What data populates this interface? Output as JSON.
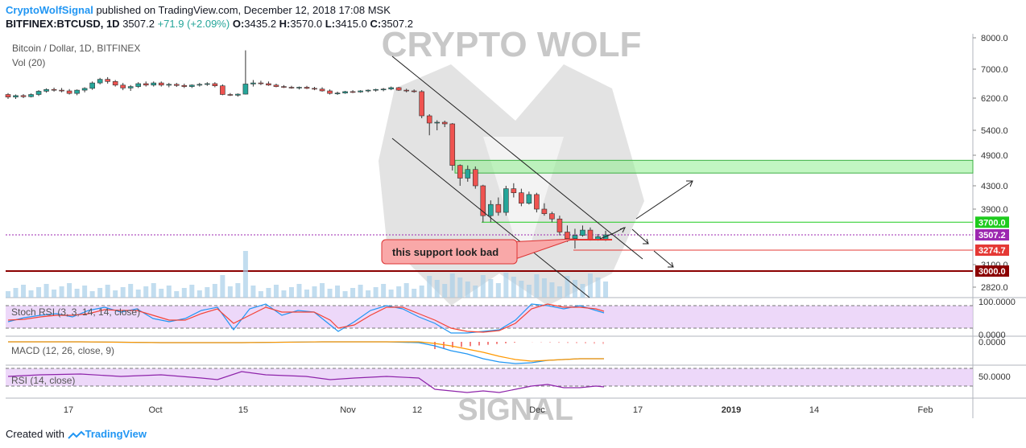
{
  "header": {
    "brand": "CryptoWolfSignal",
    "published": "published on TradingView.com, December 12, 2018 17:08 MSK",
    "symbol": "BITFINEX:BTCUSD, 1D",
    "last": "3507.2",
    "change": "+71.9 (+2.09%)",
    "o_label": "O:",
    "o_value": "3435.2",
    "h_label": "H:",
    "h_value": "3570.0",
    "l_label": "L:",
    "l_value": "3415.0",
    "c_label": "C:",
    "c_value": "3507.2"
  },
  "chart": {
    "pane_title": "Bitcoin / Dollar, 1D, BITFINEX",
    "vol_label": "Vol (20)",
    "watermark_top": "CRYPTO WOLF",
    "watermark_bottom": "SIGNAL",
    "annotation": "this support look bad",
    "stoch_label": "Stoch RSI (3, 3, 14, 14, close)",
    "macd_label": "MACD (12, 26, close, 9)",
    "rsi_label": "RSI (14, close)"
  },
  "chart_data": {
    "type": "candlestick",
    "x_ticks": [
      "17",
      "Oct",
      "15",
      "Nov",
      "12",
      "Dec",
      "17",
      "2019",
      "14",
      "Feb"
    ],
    "y_ticks": [
      "8000.0",
      "7000.0",
      "6200.0",
      "5400.0",
      "4900.0",
      "4300.0",
      "3900.0",
      "3100.0",
      "2820.0"
    ],
    "price_labels": [
      {
        "value": "3700.0",
        "color": "#1ecb1e"
      },
      {
        "value": "3507.2",
        "color": "#9c27b0"
      },
      {
        "value": "3274.7",
        "color": "#e53935"
      },
      {
        "value": "3000.0",
        "color": "#8b0000"
      }
    ],
    "stoch_ticks": [
      "100.0000",
      "0.0000"
    ],
    "macd_ticks": [
      "0.0000"
    ],
    "rsi_ticks": [
      "50.0000"
    ],
    "green_zone": [
      4550,
      4800
    ],
    "candles_ohlc": [
      [
        6300,
        6340,
        6180,
        6230
      ],
      [
        6230,
        6300,
        6180,
        6270
      ],
      [
        6270,
        6310,
        6200,
        6240
      ],
      [
        6240,
        6330,
        6220,
        6300
      ],
      [
        6300,
        6420,
        6260,
        6390
      ],
      [
        6390,
        6470,
        6350,
        6440
      ],
      [
        6440,
        6490,
        6380,
        6420
      ],
      [
        6420,
        6480,
        6360,
        6400
      ],
      [
        6400,
        6450,
        6300,
        6330
      ],
      [
        6330,
        6440,
        6280,
        6420
      ],
      [
        6420,
        6500,
        6360,
        6470
      ],
      [
        6470,
        6660,
        6430,
        6620
      ],
      [
        6620,
        6760,
        6580,
        6720
      ],
      [
        6720,
        6780,
        6600,
        6660
      ],
      [
        6660,
        6700,
        6520,
        6560
      ],
      [
        6560,
        6620,
        6420,
        6480
      ],
      [
        6480,
        6560,
        6400,
        6520
      ],
      [
        6520,
        6640,
        6480,
        6600
      ],
      [
        6600,
        6660,
        6520,
        6560
      ],
      [
        6560,
        6660,
        6520,
        6620
      ],
      [
        6620,
        6660,
        6520,
        6560
      ],
      [
        6560,
        6620,
        6500,
        6580
      ],
      [
        6580,
        6620,
        6510,
        6550
      ],
      [
        6550,
        6600,
        6480,
        6520
      ],
      [
        6520,
        6580,
        6480,
        6560
      ],
      [
        6560,
        6620,
        6520,
        6580
      ],
      [
        6580,
        6640,
        6540,
        6600
      ],
      [
        6600,
        6640,
        6500,
        6540
      ],
      [
        6540,
        6580,
        6280,
        6300
      ],
      [
        6300,
        6340,
        6260,
        6280
      ],
      [
        6280,
        6330,
        6240,
        6310
      ],
      [
        6310,
        7600,
        6300,
        6590
      ],
      [
        6590,
        6700,
        6520,
        6620
      ],
      [
        6620,
        6680,
        6560,
        6600
      ],
      [
        6600,
        6660,
        6540,
        6560
      ],
      [
        6560,
        6600,
        6500,
        6520
      ],
      [
        6520,
        6560,
        6480,
        6500
      ],
      [
        6500,
        6540,
        6460,
        6480
      ],
      [
        6480,
        6520,
        6440,
        6500
      ],
      [
        6500,
        6540,
        6450,
        6470
      ],
      [
        6470,
        6510,
        6420,
        6450
      ],
      [
        6450,
        6500,
        6380,
        6400
      ],
      [
        6400,
        6440,
        6300,
        6330
      ],
      [
        6330,
        6380,
        6290,
        6340
      ],
      [
        6340,
        6400,
        6320,
        6380
      ],
      [
        6380,
        6420,
        6340,
        6370
      ],
      [
        6370,
        6420,
        6350,
        6400
      ],
      [
        6400,
        6440,
        6360,
        6420
      ],
      [
        6420,
        6460,
        6380,
        6440
      ],
      [
        6440,
        6480,
        6390,
        6450
      ],
      [
        6450,
        6520,
        6420,
        6490
      ],
      [
        6490,
        6510,
        6400,
        6420
      ],
      [
        6420,
        6460,
        6360,
        6400
      ],
      [
        6400,
        6440,
        6350,
        6380
      ],
      [
        6380,
        6420,
        5700,
        5760
      ],
      [
        5760,
        5800,
        5300,
        5580
      ],
      [
        5580,
        5650,
        5400,
        5600
      ],
      [
        5600,
        5640,
        5480,
        5560
      ],
      [
        5560,
        5580,
        4600,
        4700
      ],
      [
        4700,
        4720,
        4300,
        4450
      ],
      [
        4450,
        4700,
        4380,
        4620
      ],
      [
        4620,
        4680,
        4250,
        4300
      ],
      [
        4300,
        4320,
        3700,
        3800
      ],
      [
        3800,
        4050,
        3700,
        3980
      ],
      [
        3980,
        4100,
        3800,
        3850
      ],
      [
        3850,
        4300,
        3800,
        4250
      ],
      [
        4250,
        4350,
        4100,
        4180
      ],
      [
        4180,
        4250,
        3950,
        4000
      ],
      [
        4000,
        4200,
        3980,
        4150
      ],
      [
        4150,
        4180,
        3850,
        3900
      ],
      [
        3900,
        4000,
        3800,
        3830
      ],
      [
        3830,
        3860,
        3700,
        3750
      ],
      [
        3750,
        3800,
        3500,
        3550
      ],
      [
        3550,
        3650,
        3400,
        3450
      ],
      [
        3450,
        3600,
        3300,
        3500
      ],
      [
        3500,
        3650,
        3480,
        3580
      ],
      [
        3580,
        3620,
        3420,
        3440
      ],
      [
        3440,
        3520,
        3420,
        3480
      ],
      [
        3435.2,
        3570,
        3415,
        3507.2
      ]
    ]
  }
}
